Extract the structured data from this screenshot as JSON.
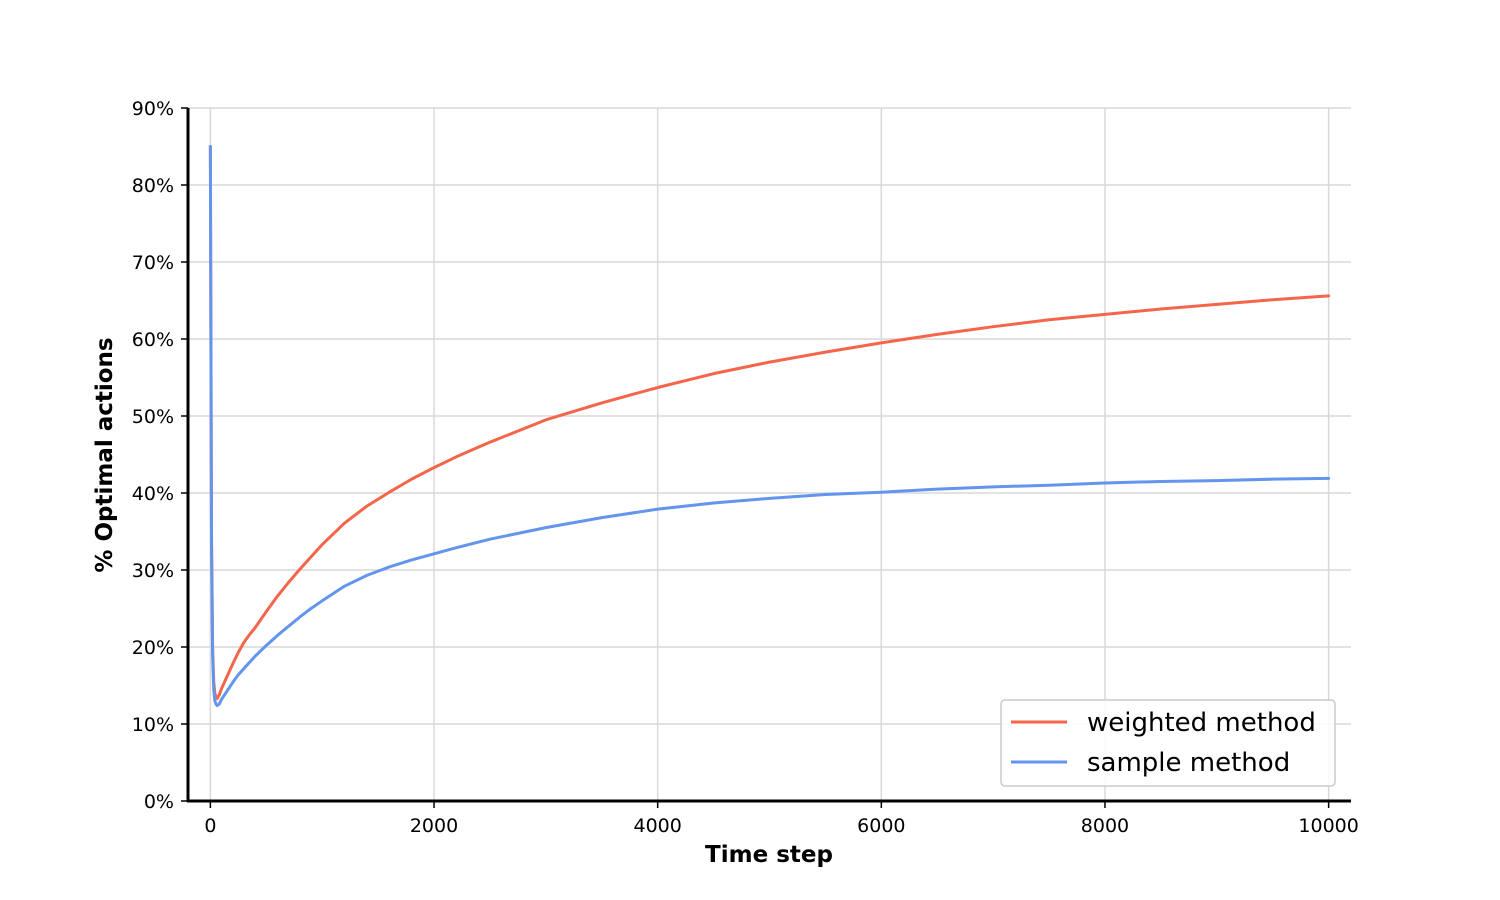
{
  "chart_data": {
    "type": "line",
    "xlabel": "Time step",
    "ylabel": "% Optimal actions",
    "xlim": [
      -200,
      10200
    ],
    "ylim": [
      0,
      90
    ],
    "xticks": [
      0,
      2000,
      4000,
      6000,
      8000,
      10000
    ],
    "xtick_labels": [
      "0",
      "2000",
      "4000",
      "6000",
      "8000",
      "10000"
    ],
    "yticks": [
      0,
      10,
      20,
      30,
      40,
      50,
      60,
      70,
      80,
      90
    ],
    "ytick_labels": [
      "0%",
      "10%",
      "20%",
      "30%",
      "40%",
      "50%",
      "60%",
      "70%",
      "80%",
      "90%"
    ],
    "grid": true,
    "legend": {
      "position": "bottom-right"
    },
    "series": [
      {
        "name": "weighted method",
        "color": "#f4654a",
        "x": [
          0,
          5,
          10,
          20,
          30,
          40,
          50,
          60,
          80,
          100,
          150,
          200,
          250,
          300,
          350,
          400,
          500,
          600,
          700,
          800,
          900,
          1000,
          1200,
          1400,
          1600,
          1800,
          2000,
          2200,
          2500,
          3000,
          3500,
          4000,
          4500,
          5000,
          5500,
          6000,
          6500,
          7000,
          7500,
          8000,
          8500,
          9000,
          9500,
          10000
        ],
        "y": [
          85,
          60,
          35,
          20,
          15.5,
          14,
          13.5,
          13.3,
          13.8,
          14.6,
          16.2,
          17.8,
          19.3,
          20.6,
          21.6,
          22.5,
          24.6,
          26.6,
          28.4,
          30.1,
          31.7,
          33.3,
          36.1,
          38.3,
          40.1,
          41.8,
          43.3,
          44.7,
          46.6,
          49.5,
          51.7,
          53.7,
          55.5,
          57.0,
          58.3,
          59.5,
          60.6,
          61.6,
          62.5,
          63.2,
          63.9,
          64.5,
          65.1,
          65.6
        ]
      },
      {
        "name": "sample method",
        "color": "#6495ed",
        "x": [
          0,
          5,
          10,
          20,
          30,
          40,
          50,
          60,
          80,
          100,
          150,
          200,
          250,
          300,
          350,
          400,
          500,
          600,
          700,
          800,
          900,
          1000,
          1200,
          1400,
          1600,
          1800,
          2000,
          2200,
          2500,
          3000,
          3500,
          4000,
          4500,
          5000,
          5500,
          6000,
          6500,
          7000,
          7500,
          8000,
          8500,
          9000,
          9500,
          10000
        ],
        "y": [
          85,
          60,
          34,
          19,
          14.5,
          13.0,
          12.6,
          12.4,
          12.6,
          13.2,
          14.3,
          15.4,
          16.4,
          17.2,
          18.0,
          18.8,
          20.2,
          21.5,
          22.7,
          23.9,
          25.0,
          26.0,
          27.9,
          29.3,
          30.4,
          31.3,
          32.1,
          32.9,
          34.0,
          35.5,
          36.8,
          37.9,
          38.7,
          39.3,
          39.8,
          40.1,
          40.5,
          40.8,
          41.0,
          41.3,
          41.5,
          41.6,
          41.8,
          41.9
        ]
      }
    ]
  }
}
